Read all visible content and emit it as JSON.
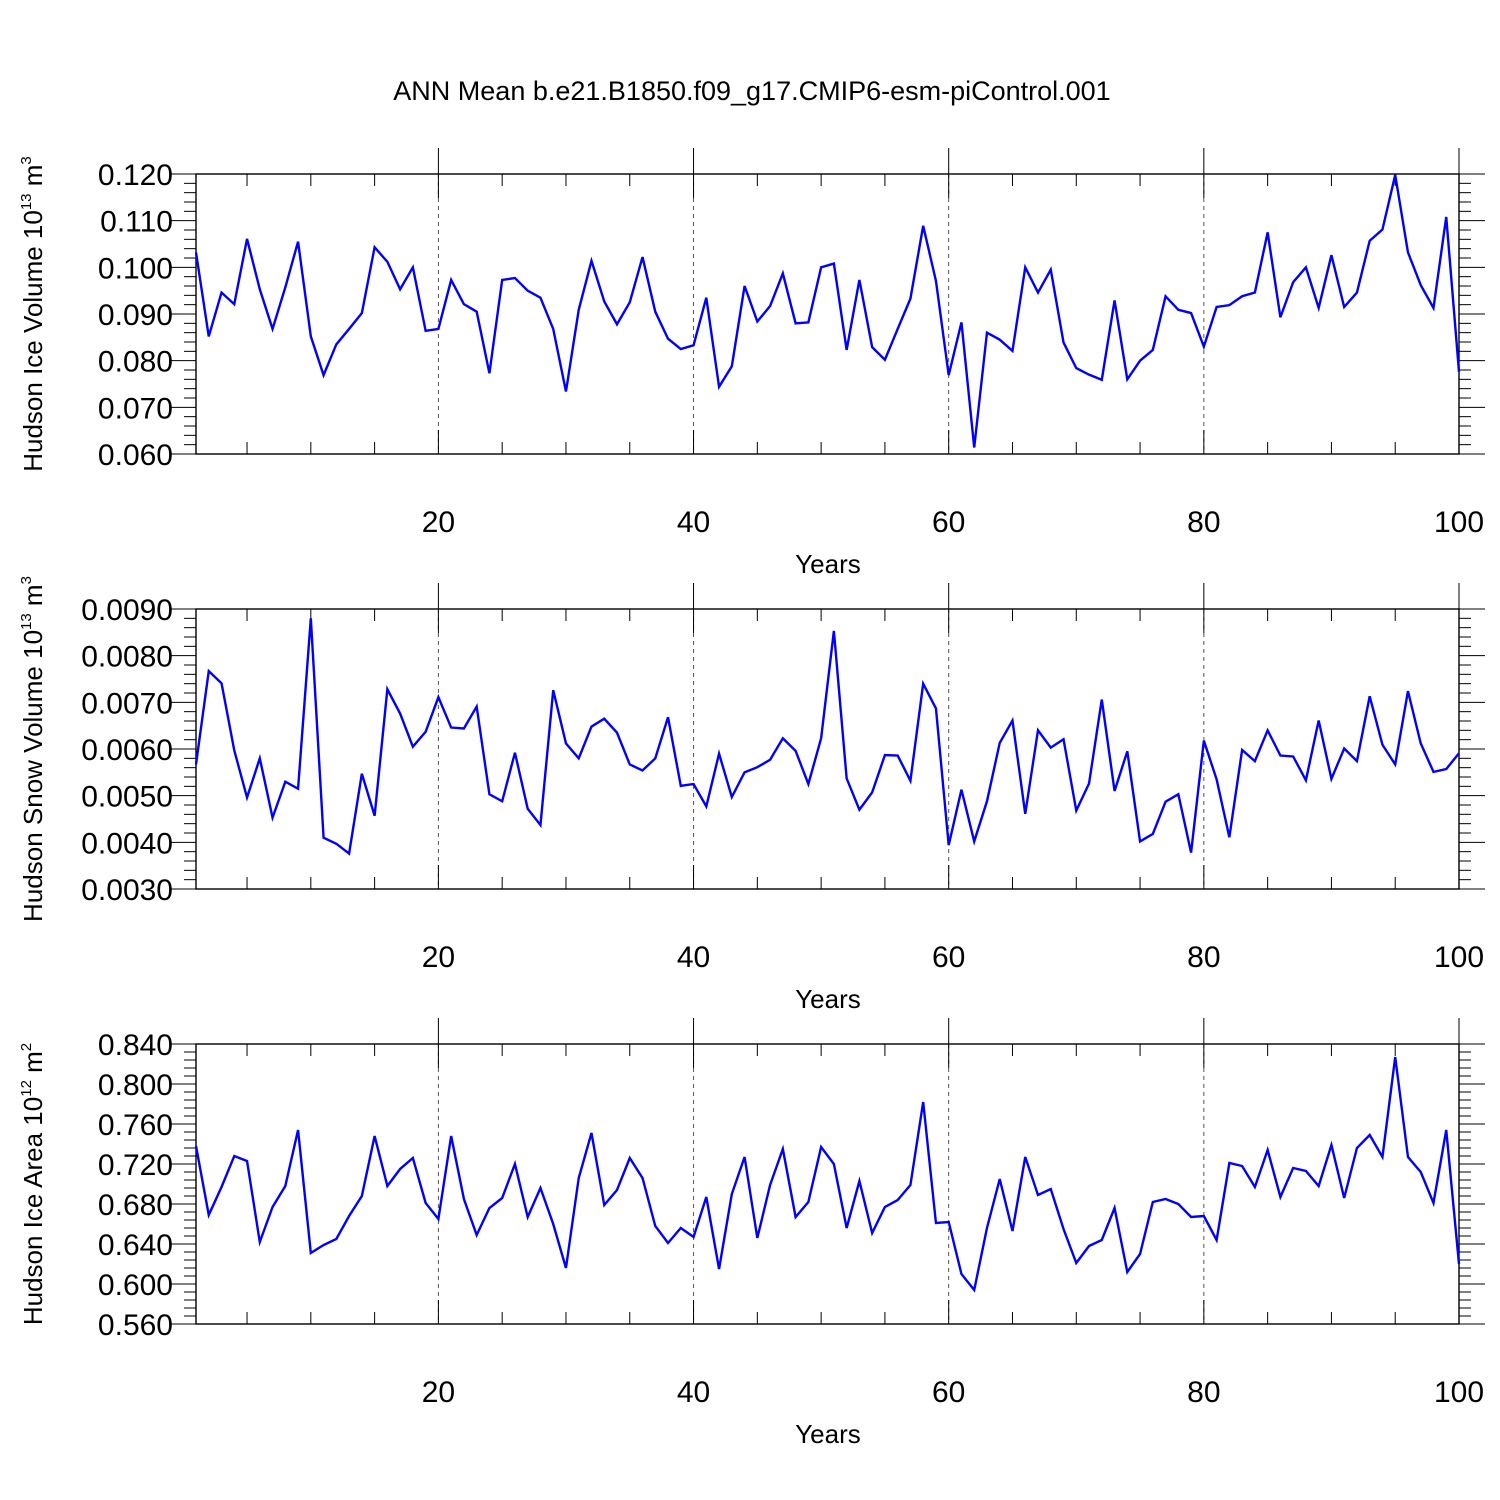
{
  "title": "ANN Mean b.e21.B1850.f09_g17.CMIP6-esm-piControl.001",
  "colors": {
    "series": "#0000ff",
    "axes": "#000000",
    "grid": "#555555"
  },
  "chart_data": [
    {
      "type": "line",
      "name": "ice-volume",
      "ylabel_main": "Hudson Ice Volume 10",
      "ylabel_exp": "13",
      "ylabel_unit": " m",
      "ylabel_unit_exp": "3",
      "xlabel": "Years",
      "xlim": [
        1,
        100
      ],
      "ylim": [
        0.06,
        0.12
      ],
      "yticks": [
        0.06,
        0.07,
        0.08,
        0.09,
        0.1,
        0.11,
        0.12
      ],
      "ytick_labels": [
        "0.060",
        "0.070",
        "0.080",
        "0.090",
        "0.100",
        "0.110",
        "0.120"
      ],
      "xticks": [
        20,
        40,
        60,
        80,
        100
      ],
      "xtick_labels": [
        "20",
        "40",
        "60",
        "80",
        "100"
      ],
      "x_start": 1,
      "values": [
        0.1032,
        0.0852,
        0.0946,
        0.0921,
        0.1061,
        0.0953,
        0.0868,
        0.0957,
        0.1055,
        0.0852,
        0.0769,
        0.0835,
        0.0868,
        0.0902,
        0.1043,
        0.1012,
        0.0953,
        0.1,
        0.0864,
        0.0868,
        0.0973,
        0.0921,
        0.0905,
        0.0773,
        0.0973,
        0.0977,
        0.095,
        0.0935,
        0.0868,
        0.0734,
        0.0909,
        0.1014,
        0.0927,
        0.0878,
        0.0925,
        0.1022,
        0.0905,
        0.0847,
        0.0825,
        0.0833,
        0.0935,
        0.0744,
        0.0788,
        0.096,
        0.0884,
        0.0917,
        0.0987,
        0.088,
        0.0882,
        0.1,
        0.1008,
        0.0823,
        0.0973,
        0.0829,
        0.0802,
        0.0868,
        0.0933,
        0.1089,
        0.0971,
        0.0769,
        0.0882,
        0.0614,
        0.086,
        0.0845,
        0.0821,
        0.1,
        0.0946,
        0.0995,
        0.0839,
        0.0784,
        0.077,
        0.0759,
        0.0929,
        0.076,
        0.08,
        0.0823,
        0.0938,
        0.0909,
        0.0902,
        0.083,
        0.0915,
        0.0919,
        0.0938,
        0.0946,
        0.1075,
        0.0893,
        0.0968,
        0.1,
        0.0913,
        0.1026,
        0.0915,
        0.0946,
        0.1057,
        0.1081,
        0.1198,
        0.1032,
        0.0962,
        0.0913,
        0.1108,
        0.0776
      ]
    },
    {
      "type": "line",
      "name": "snow-volume",
      "ylabel_main": "Hudson Snow Volume 10",
      "ylabel_exp": "13",
      "ylabel_unit": " m",
      "ylabel_unit_exp": "3",
      "xlabel": "Years",
      "xlim": [
        1,
        100
      ],
      "ylim": [
        0.003,
        0.009
      ],
      "yticks": [
        0.003,
        0.004,
        0.005,
        0.006,
        0.007,
        0.008,
        0.009
      ],
      "ytick_labels": [
        "0.0030",
        "0.0040",
        "0.0050",
        "0.0060",
        "0.0070",
        "0.0080",
        "0.0090"
      ],
      "xticks": [
        20,
        40,
        60,
        80,
        100
      ],
      "xtick_labels": [
        "20",
        "40",
        "60",
        "80",
        "100"
      ],
      "x_start": 1,
      "values": [
        0.00567,
        0.00767,
        0.00741,
        0.00597,
        0.00496,
        0.0058,
        0.00453,
        0.0053,
        0.00515,
        0.0088,
        0.0041,
        0.00397,
        0.00376,
        0.00547,
        0.00457,
        0.00728,
        0.00676,
        0.00605,
        0.00637,
        0.00711,
        0.00646,
        0.00644,
        0.00691,
        0.00503,
        0.00488,
        0.00592,
        0.00472,
        0.00437,
        0.00726,
        0.00612,
        0.0058,
        0.00648,
        0.00665,
        0.00635,
        0.00567,
        0.00554,
        0.0058,
        0.00668,
        0.00521,
        0.00525,
        0.00477,
        0.0059,
        0.00497,
        0.0055,
        0.00561,
        0.00577,
        0.00623,
        0.00596,
        0.00525,
        0.00623,
        0.00853,
        0.00537,
        0.0047,
        0.00507,
        0.00587,
        0.00586,
        0.00532,
        0.0074,
        0.00687,
        0.00394,
        0.00513,
        0.00402,
        0.00488,
        0.00613,
        0.00661,
        0.00461,
        0.0064,
        0.00603,
        0.00621,
        0.00468,
        0.00526,
        0.00706,
        0.0051,
        0.00595,
        0.00402,
        0.00418,
        0.00487,
        0.00503,
        0.00378,
        0.00618,
        0.00535,
        0.00411,
        0.00598,
        0.00574,
        0.0064,
        0.00586,
        0.00584,
        0.00533,
        0.00661,
        0.00536,
        0.00601,
        0.00574,
        0.00713,
        0.00609,
        0.00567,
        0.00724,
        0.00612,
        0.00551,
        0.00557,
        0.00591
      ]
    },
    {
      "type": "line",
      "name": "ice-area",
      "ylabel_main": "Hudson Ice Area 10",
      "ylabel_exp": "12",
      "ylabel_unit": " m",
      "ylabel_unit_exp": "2",
      "xlabel": "Years",
      "xlim": [
        1,
        100
      ],
      "ylim": [
        0.56,
        0.84
      ],
      "yticks": [
        0.56,
        0.6,
        0.64,
        0.68,
        0.72,
        0.76,
        0.8,
        0.84
      ],
      "ytick_labels": [
        "0.560",
        "0.600",
        "0.640",
        "0.680",
        "0.720",
        "0.760",
        "0.800",
        "0.840"
      ],
      "xticks": [
        20,
        40,
        60,
        80,
        100
      ],
      "xtick_labels": [
        "20",
        "40",
        "60",
        "80",
        "100"
      ],
      "x_start": 1,
      "values": [
        0.738,
        0.669,
        0.697,
        0.728,
        0.723,
        0.642,
        0.677,
        0.698,
        0.754,
        0.631,
        0.639,
        0.645,
        0.668,
        0.688,
        0.748,
        0.698,
        0.715,
        0.726,
        0.681,
        0.665,
        0.748,
        0.685,
        0.649,
        0.676,
        0.686,
        0.72,
        0.667,
        0.696,
        0.66,
        0.616,
        0.706,
        0.751,
        0.679,
        0.694,
        0.726,
        0.706,
        0.658,
        0.641,
        0.656,
        0.647,
        0.687,
        0.615,
        0.69,
        0.727,
        0.646,
        0.699,
        0.735,
        0.667,
        0.682,
        0.737,
        0.72,
        0.656,
        0.703,
        0.651,
        0.677,
        0.684,
        0.699,
        0.782,
        0.661,
        0.662,
        0.61,
        0.594,
        0.656,
        0.705,
        0.653,
        0.727,
        0.689,
        0.695,
        0.655,
        0.621,
        0.638,
        0.644,
        0.676,
        0.612,
        0.63,
        0.682,
        0.685,
        0.68,
        0.667,
        0.668,
        0.644,
        0.721,
        0.718,
        0.697,
        0.734,
        0.687,
        0.716,
        0.713,
        0.698,
        0.739,
        0.686,
        0.736,
        0.749,
        0.727,
        0.827,
        0.727,
        0.712,
        0.681,
        0.754,
        0.62
      ]
    }
  ]
}
